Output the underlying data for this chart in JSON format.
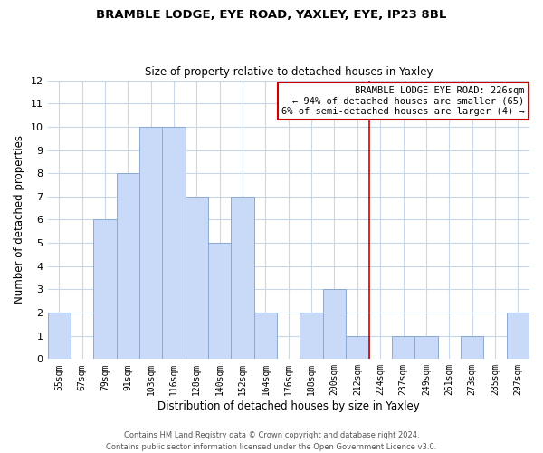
{
  "title": "BRAMBLE LODGE, EYE ROAD, YAXLEY, EYE, IP23 8BL",
  "subtitle": "Size of property relative to detached houses in Yaxley",
  "xlabel": "Distribution of detached houses by size in Yaxley",
  "ylabel": "Number of detached properties",
  "bar_labels": [
    "55sqm",
    "67sqm",
    "79sqm",
    "91sqm",
    "103sqm",
    "116sqm",
    "128sqm",
    "140sqm",
    "152sqm",
    "164sqm",
    "176sqm",
    "188sqm",
    "200sqm",
    "212sqm",
    "224sqm",
    "237sqm",
    "249sqm",
    "261sqm",
    "273sqm",
    "285sqm",
    "297sqm"
  ],
  "bar_values": [
    2,
    0,
    6,
    8,
    10,
    10,
    7,
    5,
    7,
    2,
    0,
    2,
    3,
    1,
    0,
    1,
    1,
    0,
    1,
    0,
    2
  ],
  "bar_color": "#c9daf8",
  "bar_edge_color": "#8da9d0",
  "ylim": [
    0,
    12
  ],
  "yticks": [
    0,
    1,
    2,
    3,
    4,
    5,
    6,
    7,
    8,
    9,
    10,
    11,
    12
  ],
  "vline_x_index": 14,
  "vline_color": "#cc0000",
  "annotation_title": "BRAMBLE LODGE EYE ROAD: 226sqm",
  "annotation_line1": "← 94% of detached houses are smaller (65)",
  "annotation_line2": "6% of semi-detached houses are larger (4) →",
  "annotation_box_color": "#ffffff",
  "annotation_box_edge_color": "#cc0000",
  "grid_color": "#c8d8e8",
  "bg_color": "#ffffff",
  "footer1": "Contains HM Land Registry data © Crown copyright and database right 2024.",
  "footer2": "Contains public sector information licensed under the Open Government Licence v3.0."
}
